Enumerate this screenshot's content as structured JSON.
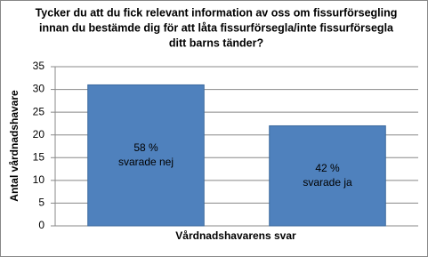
{
  "chart_data": {
    "type": "bar",
    "title": [
      "Tycker du att du fick relevant information av oss om fissurförsegling",
      "innan du bestämde dig för att låta fissurförsegla/inte fissurförsegla",
      "ditt barns tänder?"
    ],
    "x_label": "Vårdnadshavarens svar",
    "y_label": "Antal vårdnadshavare",
    "categories": [
      null,
      null
    ],
    "values": [
      31,
      22
    ],
    "bar_labels": [
      [
        "58 %",
        "svarade nej"
      ],
      [
        "42 %",
        "svarade ja"
      ]
    ],
    "color": "#4f81bd",
    "ylim": [
      0,
      35
    ],
    "yticks": [
      0,
      5,
      10,
      15,
      20,
      25,
      30,
      35
    ],
    "grid": true
  }
}
